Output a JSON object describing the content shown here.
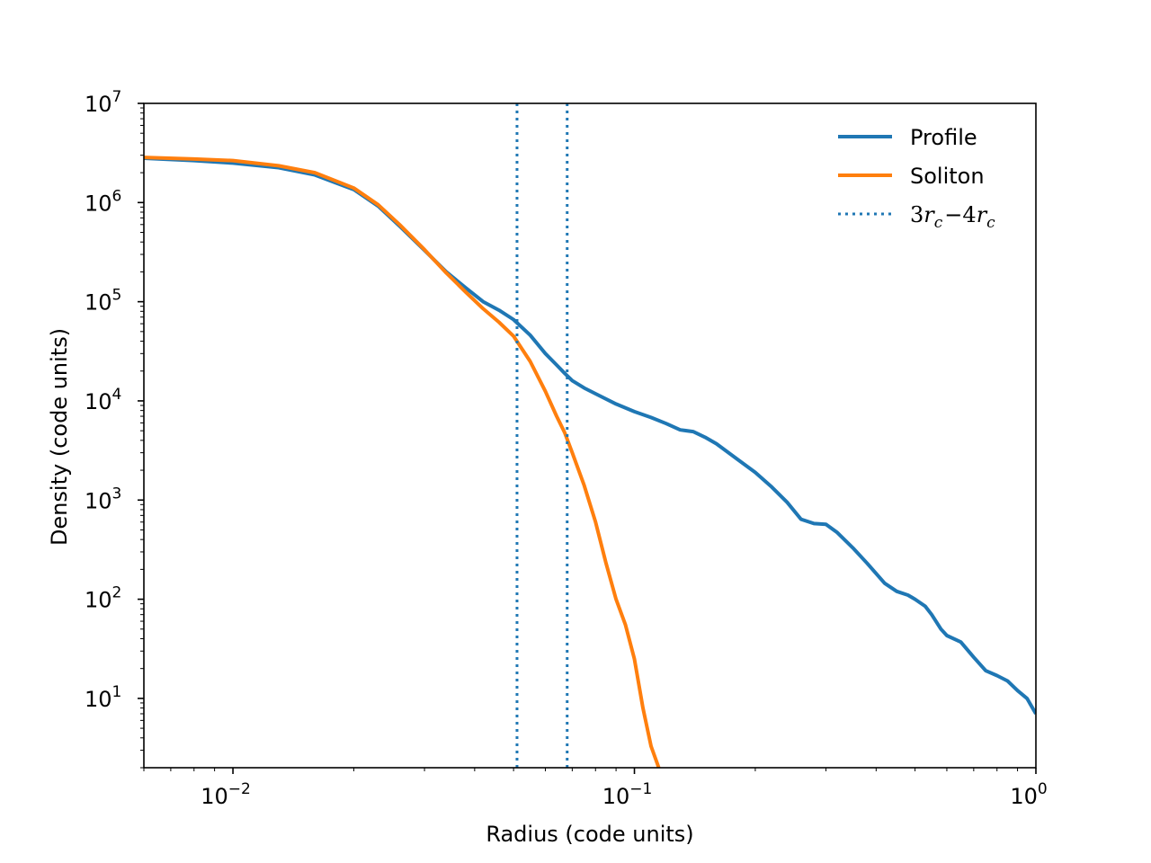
{
  "chart_data": {
    "type": "line",
    "title": "",
    "xlabel": "Radius (code units)",
    "ylabel": "Density (code units)",
    "xscale": "log",
    "yscale": "log",
    "xlim": [
      0.006,
      1.0
    ],
    "ylim": [
      2.0,
      10000000
    ],
    "grid": false,
    "legend_position": "top-right",
    "x_ticks": [
      {
        "value": 0.01,
        "base": "10",
        "exp": "−2"
      },
      {
        "value": 0.1,
        "base": "10",
        "exp": "−1"
      },
      {
        "value": 1,
        "base": "10",
        "exp": "0"
      }
    ],
    "y_ticks": [
      {
        "value": 10,
        "base": "10",
        "exp": "1"
      },
      {
        "value": 100,
        "base": "10",
        "exp": "2"
      },
      {
        "value": 1000,
        "base": "10",
        "exp": "3"
      },
      {
        "value": 10000,
        "base": "10",
        "exp": "4"
      },
      {
        "value": 100000,
        "base": "10",
        "exp": "5"
      },
      {
        "value": 1000000,
        "base": "10",
        "exp": "6"
      },
      {
        "value": 10000000,
        "base": "10",
        "exp": "7"
      }
    ],
    "series": [
      {
        "name": "Profile",
        "color": "#1f77b4",
        "style": "solid",
        "x": [
          0.006,
          0.008,
          0.01,
          0.013,
          0.016,
          0.02,
          0.023,
          0.026,
          0.03,
          0.034,
          0.038,
          0.042,
          0.046,
          0.05,
          0.055,
          0.06,
          0.064,
          0.067,
          0.07,
          0.075,
          0.08,
          0.09,
          0.1,
          0.11,
          0.12,
          0.13,
          0.14,
          0.15,
          0.16,
          0.18,
          0.2,
          0.22,
          0.24,
          0.26,
          0.28,
          0.3,
          0.32,
          0.35,
          0.38,
          0.42,
          0.45,
          0.48,
          0.5,
          0.53,
          0.55,
          0.58,
          0.6,
          0.65,
          0.7,
          0.75,
          0.8,
          0.85,
          0.9,
          0.95,
          1.0
        ],
        "y": [
          2800000,
          2650000,
          2500000,
          2250000,
          1900000,
          1350000,
          920000,
          580000,
          330000,
          200000,
          138000,
          100000,
          82000,
          66000,
          46000,
          30000,
          23000,
          19000,
          16000,
          13500,
          11800,
          9300,
          7800,
          6800,
          5900,
          5100,
          4900,
          4300,
          3700,
          2600,
          1900,
          1350,
          950,
          640,
          580,
          570,
          470,
          330,
          230,
          145,
          120,
          110,
          100,
          85,
          70,
          50,
          43,
          37,
          26,
          19,
          17,
          15,
          12,
          10,
          7
        ]
      },
      {
        "name": "Soliton",
        "color": "#ff7f0e",
        "style": "solid",
        "x": [
          0.006,
          0.008,
          0.01,
          0.013,
          0.016,
          0.02,
          0.023,
          0.026,
          0.03,
          0.034,
          0.038,
          0.042,
          0.046,
          0.05,
          0.055,
          0.06,
          0.064,
          0.067,
          0.07,
          0.075,
          0.08,
          0.085,
          0.09,
          0.095,
          0.1,
          0.105,
          0.11,
          0.115
        ],
        "y": [
          2850000,
          2750000,
          2650000,
          2350000,
          2000000,
          1400000,
          950000,
          600000,
          335000,
          195000,
          125000,
          85000,
          62000,
          45000,
          25000,
          12500,
          7000,
          4800,
          3000,
          1400,
          600,
          230,
          100,
          55,
          25,
          8,
          3.3,
          2.0
        ]
      },
      {
        "name": "3r_c−4r_c",
        "color": "#1f77b4",
        "style": "dotted",
        "vlines": [
          0.051,
          0.068
        ]
      }
    ],
    "legend": [
      {
        "label": "Profile",
        "math": false
      },
      {
        "label": "Soliton",
        "math": false
      },
      {
        "label": "3r_c−4r_c",
        "math": true,
        "parts": [
          {
            "t": "3",
            "sub": false,
            "italic": false
          },
          {
            "t": "r",
            "sub": false,
            "italic": true
          },
          {
            "t": "c",
            "sub": true,
            "italic": true
          },
          {
            "t": "−",
            "sub": false,
            "italic": false
          },
          {
            "t": "4",
            "sub": false,
            "italic": false
          },
          {
            "t": "r",
            "sub": false,
            "italic": true
          },
          {
            "t": "c",
            "sub": true,
            "italic": true
          }
        ]
      }
    ]
  }
}
